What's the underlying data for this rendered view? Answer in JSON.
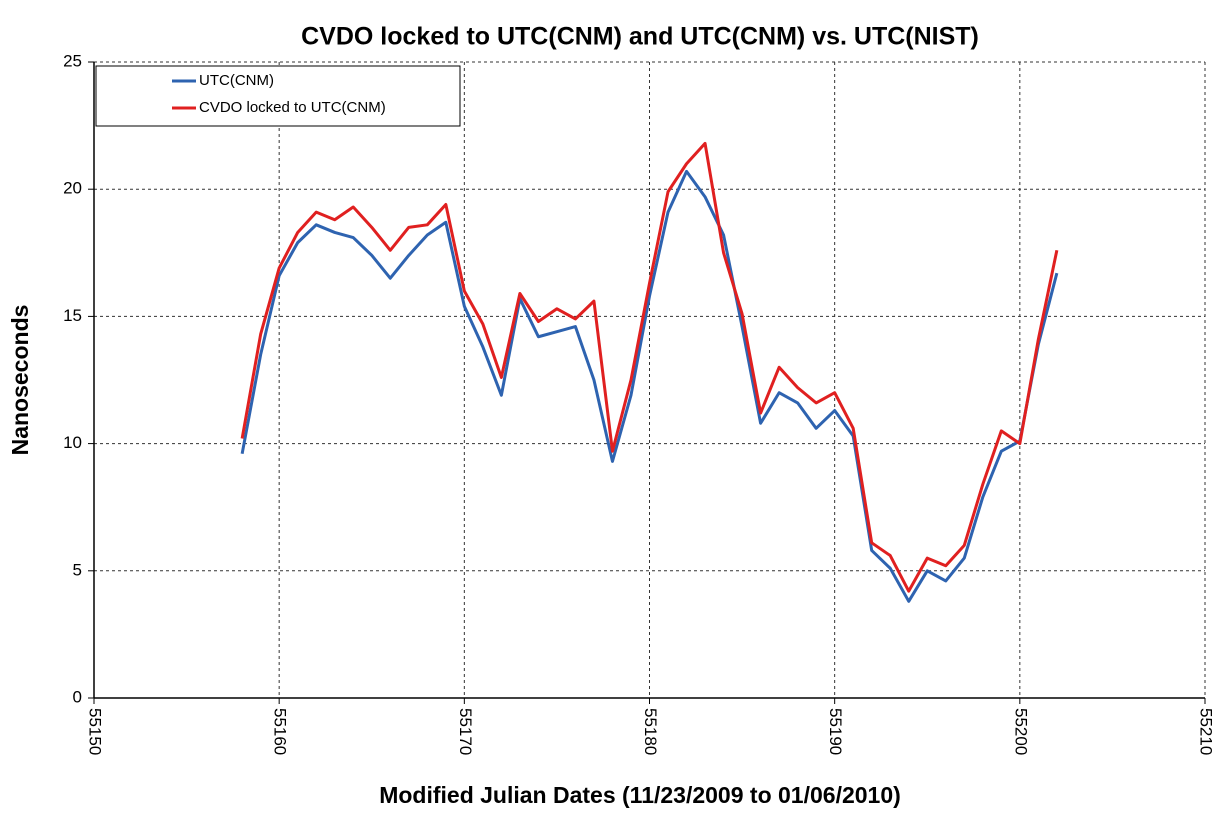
{
  "chart_data": {
    "type": "line",
    "title": "CVDO locked to UTC(CNM) and UTC(CNM) vs. UTC(NIST)",
    "xlabel": "Modified Julian Dates (11/23/2009 to 01/06/2010)",
    "ylabel": "Nanoseconds",
    "x": [
      55158,
      55159,
      55160,
      55161,
      55162,
      55163,
      55164,
      55165,
      55166,
      55167,
      55168,
      55169,
      55170,
      55171,
      55172,
      55173,
      55174,
      55175,
      55176,
      55177,
      55178,
      55179,
      55180,
      55181,
      55182,
      55183,
      55184,
      55185,
      55186,
      55187,
      55188,
      55189,
      55190,
      55191,
      55192,
      55193,
      55194,
      55195,
      55196,
      55197,
      55198,
      55199,
      55200,
      55201,
      55202
    ],
    "series": [
      {
        "name": "UTC(CNM)",
        "color": "#2e63b0",
        "values": [
          9.6,
          13.5,
          16.6,
          17.9,
          18.6,
          18.3,
          18.1,
          17.4,
          16.5,
          17.4,
          18.2,
          18.7,
          15.4,
          13.8,
          11.9,
          15.7,
          14.2,
          14.4,
          14.6,
          12.5,
          9.3,
          11.9,
          15.8,
          19.1,
          20.7,
          19.7,
          18.2,
          14.6,
          10.8,
          12.0,
          11.6,
          10.6,
          11.3,
          10.3,
          5.8,
          5.1,
          3.8,
          5.0,
          4.6,
          5.5,
          7.9,
          9.7,
          10.1,
          13.9,
          16.7
        ]
      },
      {
        "name": "CVDO locked to UTC(CNM)",
        "color": "#e02020",
        "values": [
          10.2,
          14.3,
          16.9,
          18.3,
          19.1,
          18.8,
          19.3,
          18.5,
          17.6,
          18.5,
          18.6,
          19.4,
          16.0,
          14.7,
          12.6,
          15.9,
          14.8,
          15.3,
          14.9,
          15.6,
          9.7,
          12.5,
          16.3,
          19.9,
          21.0,
          21.8,
          17.5,
          15.1,
          11.2,
          13.0,
          12.2,
          11.6,
          12.0,
          10.6,
          6.1,
          5.6,
          4.2,
          5.5,
          5.2,
          6.0,
          8.4,
          10.5,
          10.0,
          14.1,
          17.6
        ]
      }
    ],
    "xlim": [
      55150,
      55210
    ],
    "xticks": [
      55150,
      55160,
      55170,
      55180,
      55190,
      55200,
      55210
    ],
    "ylim": [
      0,
      25
    ],
    "yticks": [
      0,
      5,
      10,
      15,
      20,
      25
    ],
    "grid": true,
    "legend": "upper left"
  }
}
